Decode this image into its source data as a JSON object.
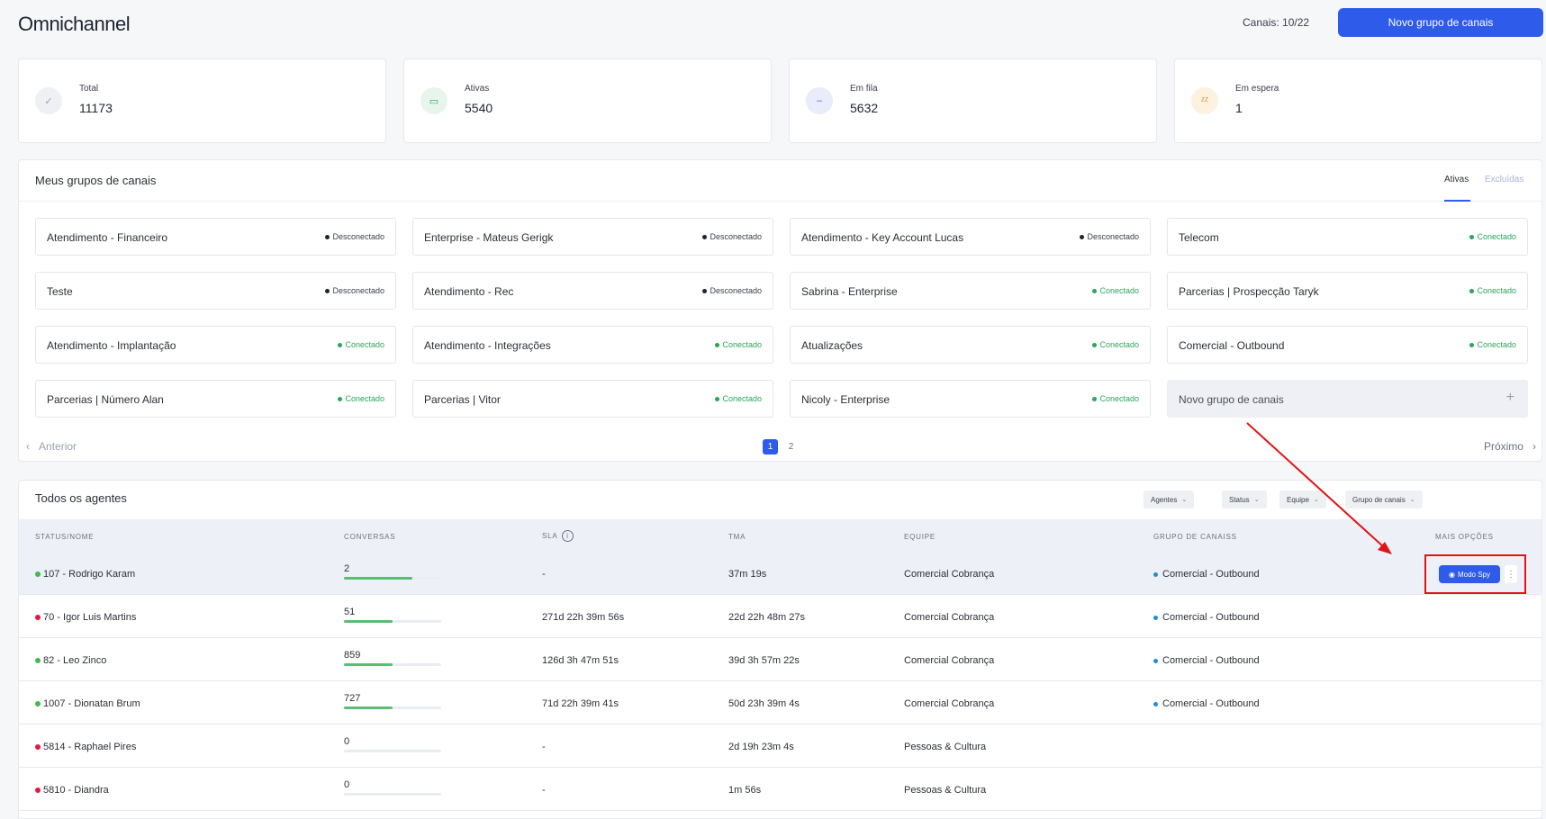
{
  "header": {
    "title": "Omnichannel",
    "channels_count": "Canais: 10/22",
    "new_group_button": "Novo grupo de canais"
  },
  "stats": [
    {
      "label": "Total",
      "value": "11173",
      "icon": "check-icon",
      "color": "#9aa1ad",
      "bg": "#eef0f3"
    },
    {
      "label": "Ativas",
      "value": "5540",
      "icon": "chat-bubble-icon",
      "color": "#2aa65a",
      "bg": "#e7f6ec"
    },
    {
      "label": "Em fila",
      "value": "5632",
      "icon": "minus-icon",
      "color": "#4a6be0",
      "bg": "#e8ecfb"
    },
    {
      "label": "Em espera",
      "value": "1",
      "icon": "sleep-icon",
      "color": "#d98a1c",
      "bg": "#fdf1df"
    }
  ],
  "groups_panel": {
    "title": "Meus grupos de canais",
    "tabs": [
      "Ativas",
      "Excluídas"
    ],
    "groups": [
      {
        "name": "Atendimento - Financeiro",
        "status": "Desconectado",
        "connected": false
      },
      {
        "name": "Enterprise - Mateus Gerigk",
        "status": "Desconectado",
        "connected": false
      },
      {
        "name": "Atendimento - Key Account Lucas",
        "status": "Desconectado",
        "connected": false
      },
      {
        "name": "Telecom",
        "status": "Conectado",
        "connected": true
      },
      {
        "name": "Teste",
        "status": "Desconectado",
        "connected": false
      },
      {
        "name": "Atendimento - Rec",
        "status": "Desconectado",
        "connected": false
      },
      {
        "name": "Sabrina - Enterprise",
        "status": "Conectado",
        "connected": true
      },
      {
        "name": "Parcerias | Prospecção Taryk",
        "status": "Conectado",
        "connected": true
      },
      {
        "name": "Atendimento - Implantação",
        "status": "Conectado",
        "connected": true
      },
      {
        "name": "Atendimento - Integrações",
        "status": "Conectado",
        "connected": true
      },
      {
        "name": "Atualizações",
        "status": "Conectado",
        "connected": true
      },
      {
        "name": "Comercial - Outbound",
        "status": "Conectado",
        "connected": true
      },
      {
        "name": "Parcerias | Número Alan",
        "status": "Conectado",
        "connected": true
      },
      {
        "name": "Parcerias | Vitor",
        "status": "Conectado",
        "connected": true
      },
      {
        "name": "Nicoly - Enterprise",
        "status": "Conectado",
        "connected": true
      }
    ],
    "new_group_card": "Novo grupo de canais",
    "pagination": {
      "prev": "Anterior",
      "next": "Próximo",
      "pages": [
        "1",
        "2"
      ],
      "current": "1"
    }
  },
  "agents_panel": {
    "title": "Todos os agentes",
    "filters": [
      "Agentes",
      "Status",
      "Equipe",
      "Grupo de canais"
    ],
    "columns": [
      "STATUS/NOME",
      "CONVERSAS",
      "SLA",
      "TMA",
      "EQUIPE",
      "GRUPO DE CANAISS",
      "MAIS OPÇÕES"
    ],
    "spy_button": "Modo Spy",
    "rows": [
      {
        "name": "107 - Rodrigo Karam",
        "online": true,
        "conversations": "2",
        "progress": 0.7,
        "sla": "-",
        "tma": "37m 19s",
        "team": "Comercial Cobrança",
        "group": "Comercial - Outbound"
      },
      {
        "name": "70 - Igor Luis Martins",
        "online": false,
        "conversations": "51",
        "progress": 0.5,
        "sla": "271d 22h 39m 56s",
        "tma": "22d 22h 48m 27s",
        "team": "Comercial Cobrança",
        "group": "Comercial - Outbound"
      },
      {
        "name": "82 - Leo Zinco",
        "online": true,
        "conversations": "859",
        "progress": 0.5,
        "sla": "126d 3h 47m 51s",
        "tma": "39d 3h 57m 22s",
        "team": "Comercial Cobrança",
        "group": "Comercial - Outbound"
      },
      {
        "name": "1007 - Dionatan Brum",
        "online": true,
        "conversations": "727",
        "progress": 0.5,
        "sla": "71d 22h 39m 41s",
        "tma": "50d 23h 39m 4s",
        "team": "Comercial Cobrança",
        "group": "Comercial - Outbound"
      },
      {
        "name": "5814 - Raphael Pires",
        "online": false,
        "conversations": "0",
        "progress": 0,
        "sla": "-",
        "tma": "2d 19h 23m 4s",
        "team": "Pessoas & Cultura",
        "group": ""
      },
      {
        "name": "5810 - Diandra",
        "online": false,
        "conversations": "0",
        "progress": 0,
        "sla": "-",
        "tma": "1m 56s",
        "team": "Pessoas & Cultura",
        "group": ""
      }
    ]
  },
  "colors": {
    "accent": "#2f5bea",
    "online": "#3fb950",
    "offline": "#e5173f",
    "annotation": "#e01414"
  }
}
